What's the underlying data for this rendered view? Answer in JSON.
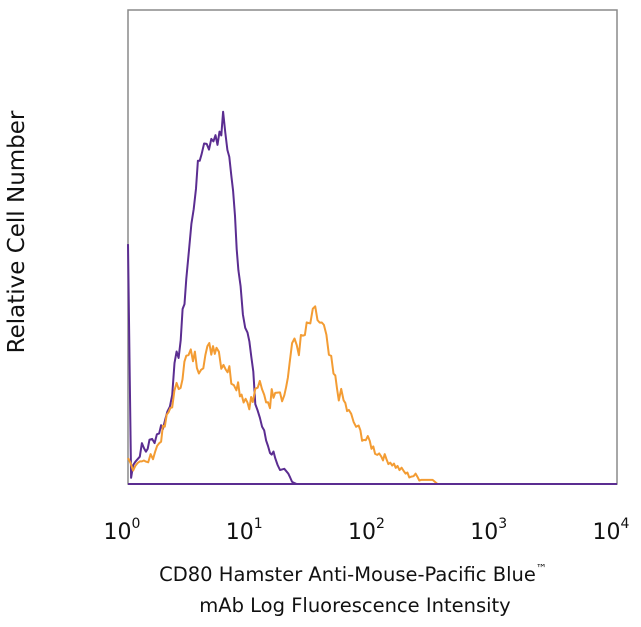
{
  "chart_data": {
    "type": "line",
    "title": "",
    "xscale": "log",
    "xlim": [
      1,
      10000
    ],
    "ylim": [
      0,
      1
    ],
    "grid": false,
    "legend": "none",
    "ylabel": "Relative Cell Number",
    "xlabel_line1": "CD80 Hamster Anti-Mouse-Pacific Blue",
    "xlabel_tm": "™",
    "xlabel_line2": "mAb Log Fluorescence Intensity",
    "x_ticks": [
      {
        "base": "10",
        "exp": "0",
        "value": 1
      },
      {
        "base": "10",
        "exp": "1",
        "value": 10
      },
      {
        "base": "10",
        "exp": "2",
        "value": 100
      },
      {
        "base": "10",
        "exp": "3",
        "value": 1000
      },
      {
        "base": "10",
        "exp": "4",
        "value": 10000
      }
    ],
    "series": [
      {
        "color": "#5b2d91",
        "x": [
          1.0,
          1.06,
          1.1,
          1.2,
          1.3,
          1.4,
          1.5,
          1.65,
          1.8,
          2.0,
          2.2,
          2.4,
          2.7,
          3.0,
          3.3,
          3.6,
          4.0,
          4.4,
          4.8,
          5.2,
          5.6,
          6.0,
          6.5,
          7.0,
          7.5,
          8.0,
          8.7,
          9.5,
          10.2,
          11.0,
          12.0,
          13.0,
          14.5,
          16.0,
          17.5,
          19.0,
          20.5,
          22.0,
          24.0,
          10000
        ],
        "y": [
          0.58,
          0.02,
          0.05,
          0.06,
          0.09,
          0.08,
          0.1,
          0.11,
          0.13,
          0.15,
          0.2,
          0.27,
          0.35,
          0.5,
          0.62,
          0.73,
          0.81,
          0.83,
          0.82,
          0.85,
          0.83,
          0.88,
          0.82,
          0.75,
          0.64,
          0.53,
          0.43,
          0.37,
          0.3,
          0.2,
          0.16,
          0.12,
          0.08,
          0.07,
          0.03,
          0.03,
          0.02,
          0.005,
          0.0,
          0.0
        ]
      },
      {
        "color": "#f39c33",
        "x": [
          1.0,
          1.1,
          1.25,
          1.4,
          1.6,
          1.8,
          2.0,
          2.3,
          2.6,
          3.0,
          3.4,
          3.8,
          4.3,
          4.8,
          5.3,
          5.8,
          6.3,
          7.0,
          7.7,
          8.5,
          9.5,
          10.5,
          11.5,
          13.0,
          14.5,
          16.0,
          17.5,
          19.0,
          21.0,
          23.0,
          25.0,
          28.0,
          31.0,
          34.0,
          37.0,
          40.0,
          44.0,
          48.0,
          53.0,
          58.0,
          64.0,
          70.0,
          77.0,
          85.0,
          95.0,
          105.0,
          118.0,
          130.0,
          145.0,
          160.0,
          180.0,
          200.0,
          225.0,
          250.0,
          280.0,
          310.0,
          340.0,
          370.0,
          10000
        ],
        "y": [
          0.06,
          0.04,
          0.06,
          0.05,
          0.07,
          0.1,
          0.14,
          0.2,
          0.24,
          0.3,
          0.31,
          0.29,
          0.31,
          0.33,
          0.34,
          0.3,
          0.29,
          0.26,
          0.25,
          0.22,
          0.2,
          0.2,
          0.24,
          0.21,
          0.2,
          0.24,
          0.23,
          0.21,
          0.29,
          0.35,
          0.33,
          0.36,
          0.39,
          0.41,
          0.39,
          0.37,
          0.31,
          0.26,
          0.22,
          0.2,
          0.17,
          0.15,
          0.13,
          0.11,
          0.1,
          0.08,
          0.07,
          0.06,
          0.05,
          0.04,
          0.03,
          0.02,
          0.02,
          0.01,
          0.01,
          0.01,
          0.0,
          0.0,
          0.0
        ]
      }
    ]
  }
}
